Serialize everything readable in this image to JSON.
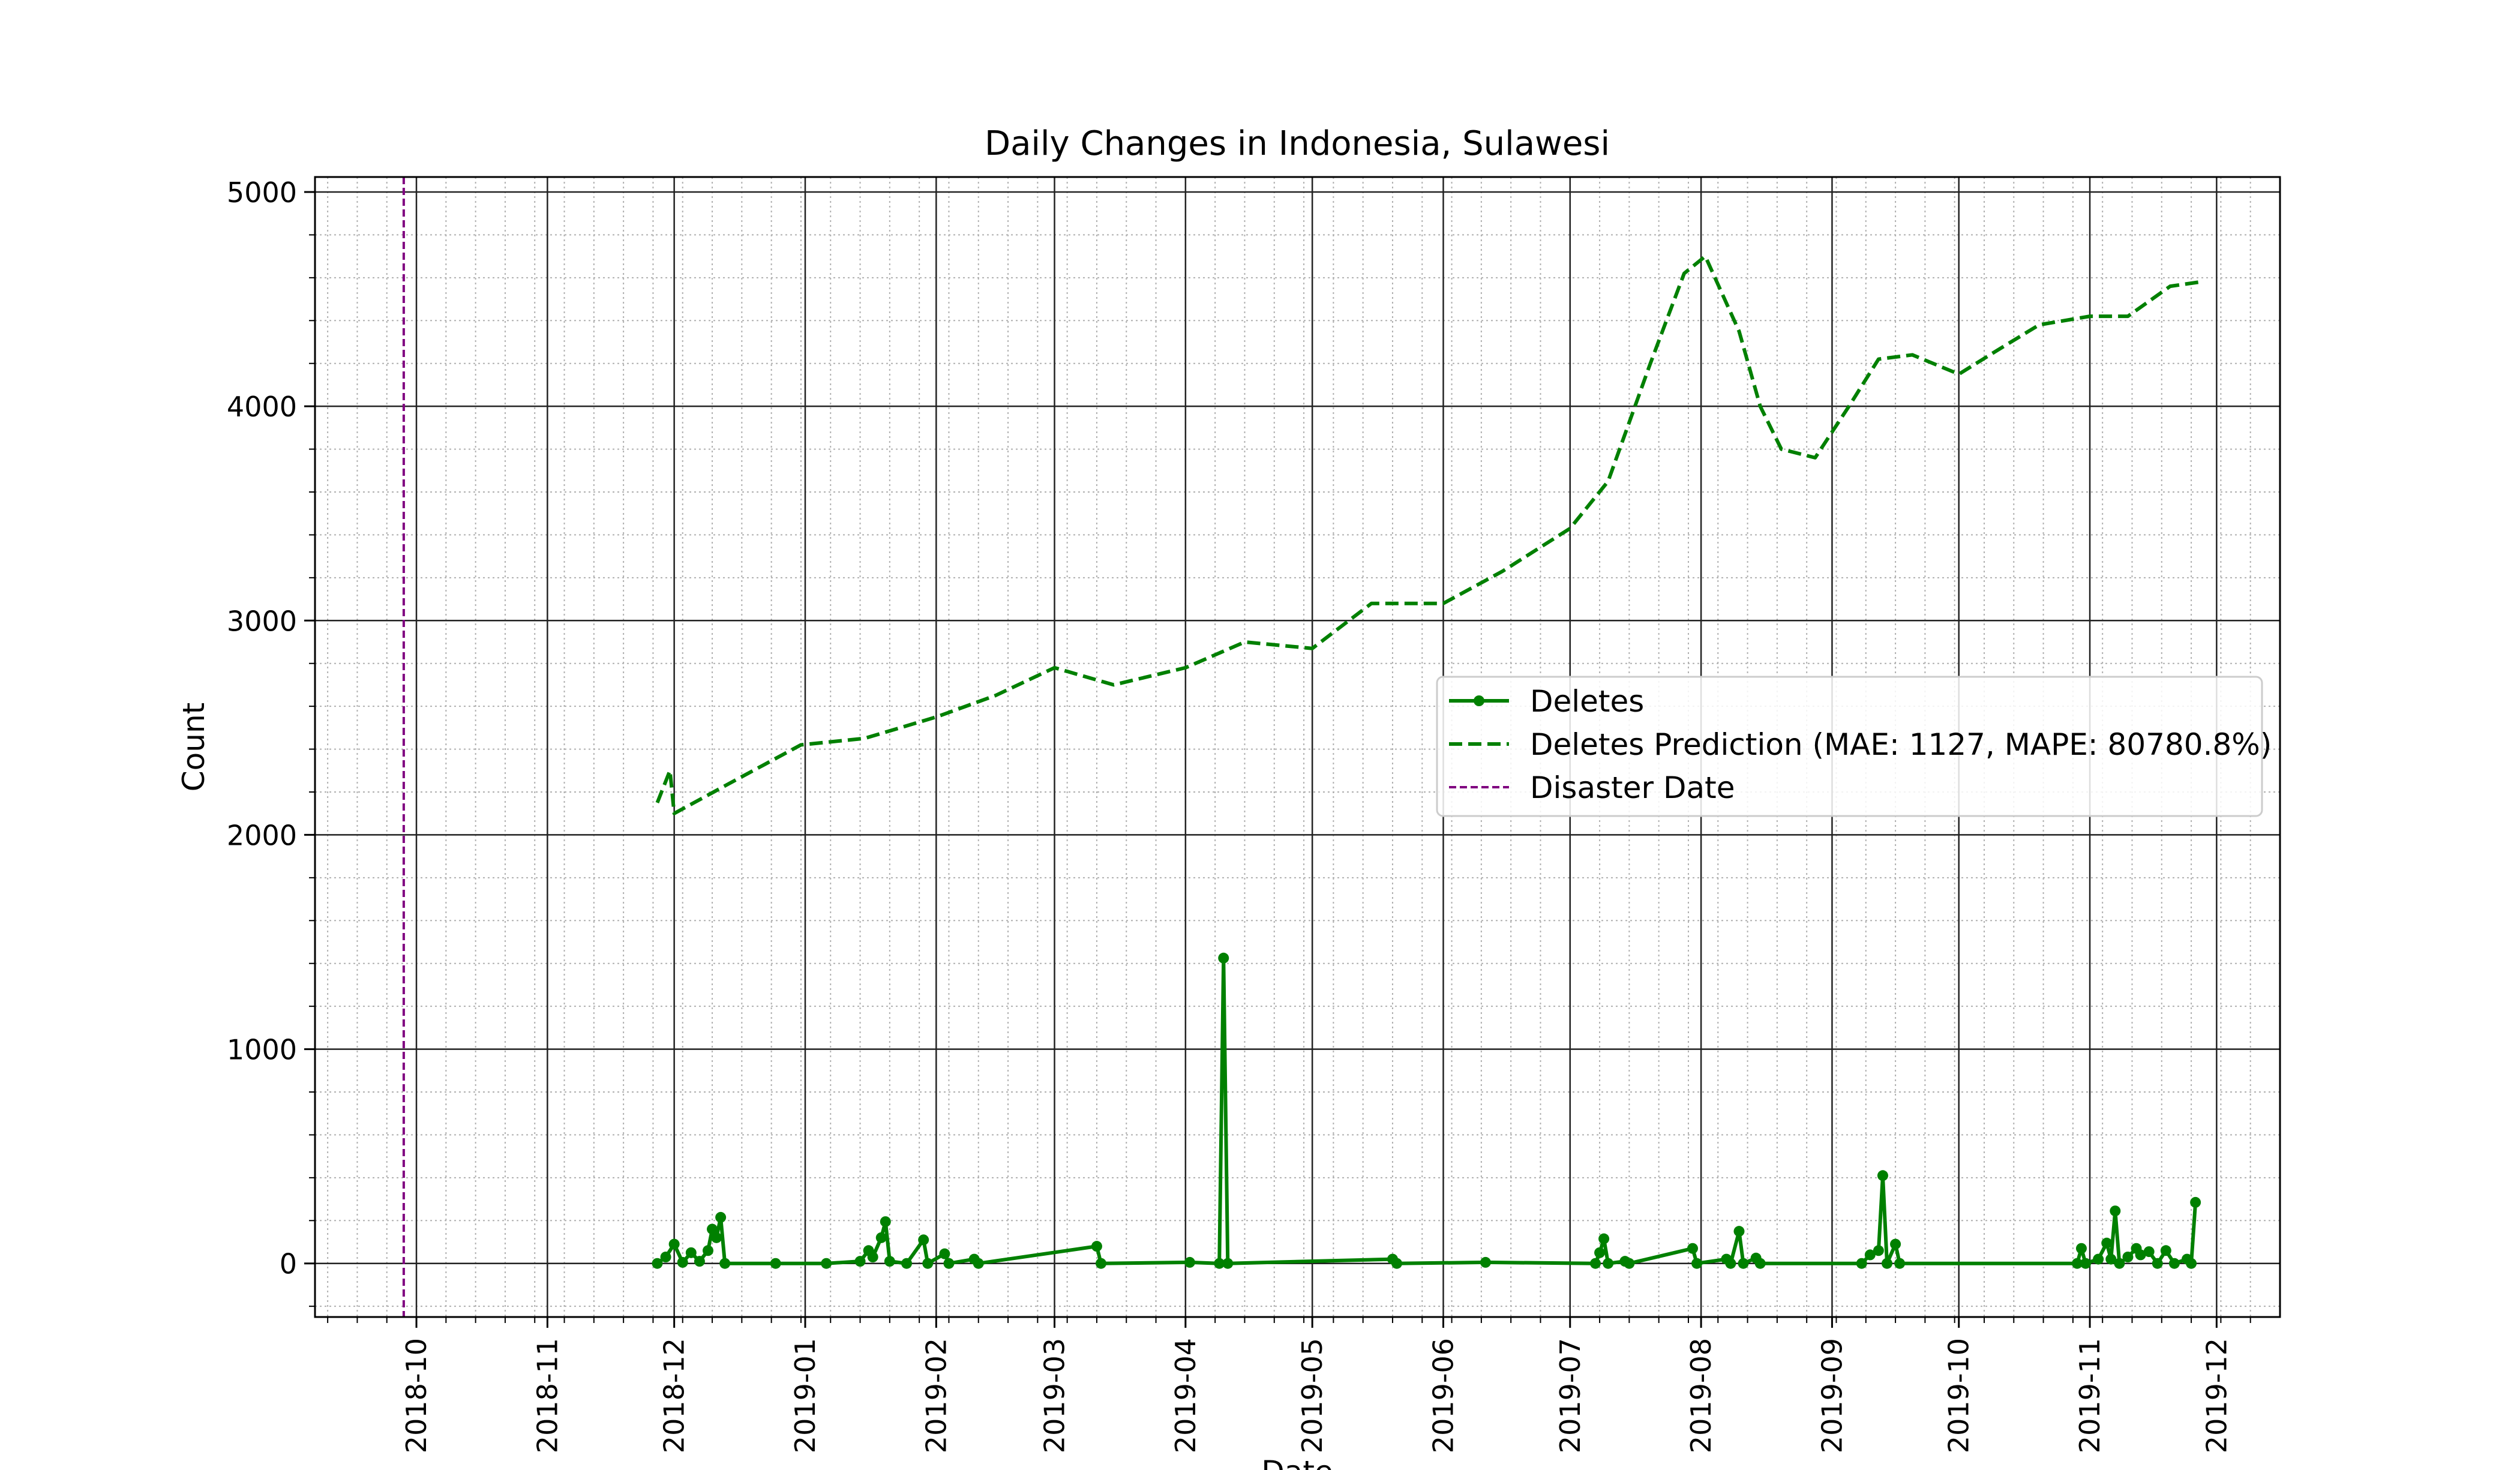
{
  "chart_data": {
    "type": "line",
    "title": "Daily Changes in Indonesia, Sulawesi",
    "xlabel": "Date",
    "ylabel": "Count",
    "xlim": [
      "2018-09-07",
      "2019-12-16"
    ],
    "ylim": [
      -250,
      5070
    ],
    "y_ticks": [
      0,
      1000,
      2000,
      3000,
      4000,
      5000
    ],
    "x_ticks": [
      "2018-10",
      "2018-11",
      "2018-12",
      "2019-01",
      "2019-02",
      "2019-03",
      "2019-04",
      "2019-05",
      "2019-06",
      "2019-07",
      "2019-08",
      "2019-09",
      "2019-10",
      "2019-11",
      "2019-12"
    ],
    "grid": true,
    "legend_position": "center-right",
    "colors": {
      "deletes": "#008000",
      "prediction": "#008000",
      "disaster": "#800080"
    },
    "disaster_date": "2018-09-28",
    "series": [
      {
        "name": "Deletes",
        "style": "solid-markers",
        "points": [
          [
            "2018-11-27",
            0
          ],
          [
            "2018-11-29",
            30
          ],
          [
            "2018-12-01",
            90
          ],
          [
            "2018-12-03",
            5
          ],
          [
            "2018-12-05",
            50
          ],
          [
            "2018-12-07",
            10
          ],
          [
            "2018-12-09",
            60
          ],
          [
            "2018-12-10",
            160
          ],
          [
            "2018-12-11",
            120
          ],
          [
            "2018-12-12",
            215
          ],
          [
            "2018-12-13",
            0
          ],
          [
            "2018-12-25",
            0
          ],
          [
            "2019-01-06",
            0
          ],
          [
            "2019-01-14",
            10
          ],
          [
            "2019-01-16",
            60
          ],
          [
            "2019-01-17",
            30
          ],
          [
            "2019-01-19",
            120
          ],
          [
            "2019-01-20",
            195
          ],
          [
            "2019-01-21",
            10
          ],
          [
            "2019-01-25",
            0
          ],
          [
            "2019-01-29",
            110
          ],
          [
            "2019-01-30",
            0
          ],
          [
            "2019-02-03",
            45
          ],
          [
            "2019-02-04",
            0
          ],
          [
            "2019-02-10",
            20
          ],
          [
            "2019-02-11",
            0
          ],
          [
            "2019-03-11",
            80
          ],
          [
            "2019-03-12",
            0
          ],
          [
            "2019-04-02",
            5
          ],
          [
            "2019-04-09",
            0
          ],
          [
            "2019-04-10",
            1425
          ],
          [
            "2019-04-11",
            0
          ],
          [
            "2019-05-20",
            20
          ],
          [
            "2019-05-21",
            0
          ],
          [
            "2019-06-11",
            5
          ],
          [
            "2019-07-07",
            0
          ],
          [
            "2019-07-08",
            50
          ],
          [
            "2019-07-09",
            115
          ],
          [
            "2019-07-10",
            0
          ],
          [
            "2019-07-14",
            10
          ],
          [
            "2019-07-15",
            0
          ],
          [
            "2019-07-30",
            70
          ],
          [
            "2019-07-31",
            0
          ],
          [
            "2019-08-07",
            20
          ],
          [
            "2019-08-08",
            0
          ],
          [
            "2019-08-10",
            150
          ],
          [
            "2019-08-11",
            0
          ],
          [
            "2019-08-14",
            25
          ],
          [
            "2019-08-15",
            0
          ],
          [
            "2019-09-08",
            0
          ],
          [
            "2019-09-10",
            40
          ],
          [
            "2019-09-12",
            60
          ],
          [
            "2019-09-13",
            410
          ],
          [
            "2019-09-14",
            0
          ],
          [
            "2019-09-16",
            90
          ],
          [
            "2019-09-17",
            0
          ],
          [
            "2019-10-29",
            0
          ],
          [
            "2019-10-30",
            70
          ],
          [
            "2019-10-31",
            0
          ],
          [
            "2019-11-03",
            20
          ],
          [
            "2019-11-05",
            95
          ],
          [
            "2019-11-06",
            20
          ],
          [
            "2019-11-07",
            245
          ],
          [
            "2019-11-08",
            0
          ],
          [
            "2019-11-10",
            30
          ],
          [
            "2019-11-12",
            70
          ],
          [
            "2019-11-13",
            40
          ],
          [
            "2019-11-15",
            55
          ],
          [
            "2019-11-17",
            0
          ],
          [
            "2019-11-19",
            60
          ],
          [
            "2019-11-21",
            0
          ],
          [
            "2019-11-24",
            20
          ],
          [
            "2019-11-25",
            0
          ],
          [
            "2019-11-26",
            285
          ]
        ]
      },
      {
        "name": "Deletes Prediction (MAE: 1127, MAPE: 80780.8%)",
        "style": "dashed",
        "points": [
          [
            "2018-11-27",
            2150
          ],
          [
            "2018-11-30",
            2300
          ],
          [
            "2018-12-01",
            2100
          ],
          [
            "2018-12-15",
            2250
          ],
          [
            "2018-12-31",
            2420
          ],
          [
            "2019-01-15",
            2450
          ],
          [
            "2019-02-01",
            2550
          ],
          [
            "2019-02-15",
            2650
          ],
          [
            "2019-03-01",
            2780
          ],
          [
            "2019-03-15",
            2700
          ],
          [
            "2019-04-01",
            2780
          ],
          [
            "2019-04-15",
            2900
          ],
          [
            "2019-05-01",
            2870
          ],
          [
            "2019-05-15",
            3080
          ],
          [
            "2019-06-01",
            3080
          ],
          [
            "2019-06-15",
            3230
          ],
          [
            "2019-07-01",
            3430
          ],
          [
            "2019-07-10",
            3650
          ],
          [
            "2019-07-20",
            4200
          ],
          [
            "2019-07-28",
            4620
          ],
          [
            "2019-08-02",
            4700
          ],
          [
            "2019-08-10",
            4350
          ],
          [
            "2019-08-15",
            4000
          ],
          [
            "2019-08-20",
            3800
          ],
          [
            "2019-08-28",
            3760
          ],
          [
            "2019-09-05",
            4000
          ],
          [
            "2019-09-12",
            4220
          ],
          [
            "2019-09-20",
            4240
          ],
          [
            "2019-10-01",
            4150
          ],
          [
            "2019-10-10",
            4260
          ],
          [
            "2019-10-20",
            4380
          ],
          [
            "2019-11-01",
            4420
          ],
          [
            "2019-11-10",
            4420
          ],
          [
            "2019-11-20",
            4560
          ],
          [
            "2019-11-27",
            4580
          ]
        ]
      }
    ],
    "legend": [
      {
        "label": "Deletes",
        "style": "solid-marker"
      },
      {
        "label": "Deletes Prediction (MAE: 1127, MAPE: 80780.8%)",
        "style": "dashed"
      },
      {
        "label": "Disaster Date",
        "style": "dashed-thin"
      }
    ]
  }
}
